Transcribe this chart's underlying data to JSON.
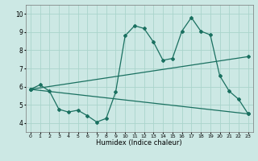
{
  "title": "",
  "xlabel": "Humidex (Indice chaleur)",
  "ylabel": "",
  "bg_color": "#cce8e4",
  "grid_color": "#aad4cc",
  "line_color": "#1a7060",
  "xlim": [
    -0.5,
    23.5
  ],
  "ylim": [
    3.5,
    10.5
  ],
  "xticks": [
    0,
    1,
    2,
    3,
    4,
    5,
    6,
    7,
    8,
    9,
    10,
    11,
    12,
    13,
    14,
    15,
    16,
    17,
    18,
    19,
    20,
    21,
    22,
    23
  ],
  "yticks": [
    4,
    5,
    6,
    7,
    8,
    9,
    10
  ],
  "line1_x": [
    0,
    1,
    2,
    3,
    4,
    5,
    6,
    7,
    8,
    9,
    10,
    11,
    12,
    13,
    14,
    15,
    16,
    17,
    18,
    19,
    20,
    21,
    22,
    23
  ],
  "line1_y": [
    5.85,
    6.1,
    5.75,
    4.75,
    4.6,
    4.7,
    4.4,
    4.05,
    4.25,
    5.7,
    8.8,
    9.35,
    9.2,
    8.45,
    7.45,
    7.55,
    9.05,
    9.8,
    9.05,
    8.85,
    6.6,
    5.75,
    5.3,
    4.5
  ],
  "line2_x": [
    0,
    23
  ],
  "line2_y": [
    5.85,
    4.5
  ],
  "line3_x": [
    0,
    23
  ],
  "line3_y": [
    5.85,
    7.65
  ]
}
